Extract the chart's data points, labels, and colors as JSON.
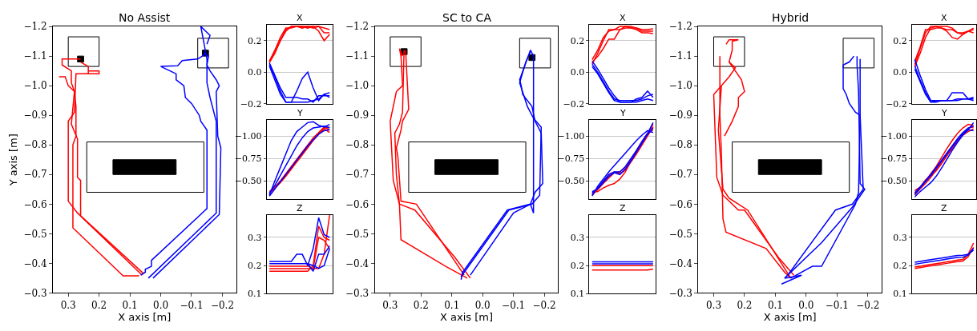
{
  "chart_data": [
    {
      "type": "line",
      "title": "No Assist",
      "xlabel": "X axis [m]",
      "ylabel": "Y axis [m]",
      "xlim": [
        0.35,
        -0.245
      ],
      "ylim": [
        -0.3,
        -1.2
      ],
      "xticks": [
        {
          "value": 0.3,
          "label": "0.3"
        },
        {
          "value": 0.2,
          "label": "0.2"
        },
        {
          "value": 0.1,
          "label": "0.1"
        },
        {
          "value": 0.0,
          "label": "0.0"
        },
        {
          "value": -0.1,
          "label": "−0.1"
        },
        {
          "value": -0.2,
          "label": "−0.2"
        }
      ],
      "yticks": [
        {
          "value": -1.2,
          "label": "−1.2"
        },
        {
          "value": -1.1,
          "label": "−1.1"
        },
        {
          "value": -1.0,
          "label": "−1.0"
        },
        {
          "value": -0.9,
          "label": "−0.9"
        },
        {
          "value": -0.8,
          "label": "−0.8"
        },
        {
          "value": -0.7,
          "label": "−0.7"
        },
        {
          "value": -0.6,
          "label": "−0.6"
        },
        {
          "value": -0.5,
          "label": "−0.5"
        },
        {
          "value": -0.4,
          "label": "−0.4"
        },
        {
          "value": -0.3,
          "label": "−0.3"
        }
      ],
      "series": [
        {
          "color": "#ff0000",
          "x": [
            0.07,
            0.122,
            0.285,
            0.285,
            0.275,
            0.275,
            0.28,
            0.29,
            0.29,
            0.32,
            0.32,
            0.26
          ],
          "values": [
            -0.358,
            -0.358,
            -0.52,
            -0.8,
            -0.83,
            -0.93,
            -0.98,
            -1.01,
            -1.05,
            -1.07,
            -1.09,
            -1.09
          ]
        },
        {
          "color": "#ff0000",
          "x": [
            0.06,
            0.26,
            0.26,
            0.27,
            0.27,
            0.29,
            0.28,
            0.3,
            0.31,
            0.33
          ],
          "values": [
            -0.36,
            -0.56,
            -0.68,
            -0.69,
            -0.82,
            -0.87,
            -0.98,
            -1.0,
            -1.03,
            -1.03
          ]
        },
        {
          "color": "#ff0000",
          "x": [
            0.055,
            0.27,
            0.3,
            0.3,
            0.28,
            0.275,
            0.235,
            0.235,
            0.2,
            0.2,
            0.235,
            0.235,
            0.26
          ],
          "values": [
            -0.365,
            -0.57,
            -0.61,
            -0.88,
            -0.91,
            -1.04,
            -1.04,
            -1.05,
            -1.05,
            -1.04,
            -1.04,
            -1.065,
            -1.08
          ]
        },
        {
          "color": "#0000ff",
          "x": [
            0.065,
            0.05,
            0.05,
            0.03,
            0.03,
            -0.15,
            -0.15,
            -0.13,
            -0.125,
            -0.1,
            -0.08,
            -0.075,
            -0.05,
            -0.05,
            -0.03,
            0.0,
            -0.055,
            -0.07,
            -0.12,
            -0.135,
            -0.145
          ],
          "values": [
            -0.36,
            -0.37,
            -0.38,
            -0.39,
            -0.41,
            -0.585,
            -0.85,
            -0.88,
            -0.9,
            -0.94,
            -0.96,
            -1.0,
            -1.02,
            -1.04,
            -1.05,
            -1.065,
            -1.067,
            -1.085,
            -1.09,
            -1.1,
            -1.11
          ]
        },
        {
          "color": "#0000ff",
          "x": [
            0.04,
            -0.18,
            -0.18,
            -0.16,
            -0.15,
            -0.15,
            -0.155,
            -0.14
          ],
          "values": [
            -0.35,
            -0.57,
            -0.88,
            -0.96,
            -1.01,
            -1.07,
            -1.1,
            -1.11
          ]
        },
        {
          "color": "#0000ff",
          "x": [
            0.025,
            -0.19,
            -0.195,
            -0.185,
            -0.18,
            -0.19,
            -0.18,
            -0.16,
            -0.15,
            -0.15,
            -0.13,
            -0.16,
            -0.15
          ],
          "values": [
            -0.35,
            -0.565,
            -0.79,
            -0.83,
            -0.98,
            -1.0,
            -1.02,
            -1.05,
            -1.07,
            -1.09,
            -1.2,
            -1.17,
            -1.14
          ]
        }
      ]
    },
    {
      "type": "line",
      "title": "X",
      "tick_labels": "y",
      "grid": "y",
      "categories": [
        null,
        null,
        null,
        null,
        null,
        null,
        null,
        null,
        null,
        null,
        null,
        null
      ],
      "ylim": [
        -0.2,
        0.3
      ],
      "yticks": [
        {
          "value": -0.2,
          "label": "−0.2"
        },
        {
          "value": 0.0,
          "label": "0.0"
        },
        {
          "value": 0.2,
          "label": "0.2"
        }
      ],
      "series": [
        {
          "color": "#ff0000",
          "values": [
            0.07,
            0.13,
            0.2,
            0.27,
            0.29,
            0.29,
            0.29,
            0.28,
            0.29,
            0.26,
            0.2,
            0.24
          ]
        },
        {
          "color": "#ff0000",
          "values": [
            0.07,
            0.14,
            0.22,
            0.28,
            0.28,
            0.29,
            0.29,
            0.29,
            0.29,
            0.29,
            0.25,
            0.25
          ]
        },
        {
          "color": "#ff0000",
          "values": [
            0.06,
            0.12,
            0.2,
            0.26,
            0.29,
            0.29,
            0.28,
            0.29,
            0.28,
            0.29,
            0.28,
            0.27
          ]
        },
        {
          "color": "#0000ff",
          "values": [
            0.06,
            -0.02,
            -0.1,
            -0.16,
            -0.16,
            -0.16,
            -0.17,
            -0.17,
            -0.19,
            -0.15,
            -0.15,
            -0.15
          ]
        },
        {
          "color": "#0000ff",
          "values": [
            0.05,
            -0.03,
            -0.12,
            -0.19,
            -0.19,
            -0.12,
            -0.04,
            0.0,
            -0.1,
            -0.18,
            -0.14,
            -0.16
          ]
        },
        {
          "color": "#0000ff",
          "values": [
            0.04,
            -0.05,
            -0.14,
            -0.19,
            -0.19,
            -0.19,
            -0.19,
            -0.19,
            -0.18,
            -0.17,
            -0.14,
            -0.13
          ]
        }
      ]
    },
    {
      "type": "line",
      "title": "Y",
      "tick_labels": "y",
      "grid": "y",
      "categories": [
        null,
        null,
        null,
        null,
        null,
        null,
        null,
        null,
        null,
        null,
        null,
        null
      ],
      "ylim": [
        -0.3,
        -1.18
      ],
      "yticks": [
        {
          "value": -1.0,
          "label": "−1.00"
        },
        {
          "value": -0.75,
          "label": "−0.75"
        },
        {
          "value": -0.5,
          "label": "−0.50"
        }
      ],
      "series": [
        {
          "color": "#ff0000",
          "values": [
            -0.37,
            -0.42,
            -0.48,
            -0.55,
            -0.63,
            -0.71,
            -0.79,
            -0.87,
            -0.95,
            -1.02,
            -1.08,
            -1.04
          ]
        },
        {
          "color": "#ff0000",
          "values": [
            -0.38,
            -0.43,
            -0.5,
            -0.58,
            -0.66,
            -0.74,
            -0.82,
            -0.9,
            -0.98,
            -1.04,
            -1.1,
            -1.07
          ]
        },
        {
          "color": "#ff0000",
          "values": [
            -0.36,
            -0.42,
            -0.49,
            -0.56,
            -0.64,
            -0.72,
            -0.8,
            -0.88,
            -0.96,
            -1.03,
            -1.09,
            -1.1
          ]
        },
        {
          "color": "#0000ff",
          "values": [
            -0.34,
            -0.5,
            -0.65,
            -0.8,
            -0.95,
            -1.05,
            -1.1,
            -1.15,
            -1.16,
            -1.12,
            -1.1,
            -1.13
          ]
        },
        {
          "color": "#0000ff",
          "values": [
            -0.36,
            -0.45,
            -0.56,
            -0.67,
            -0.78,
            -0.89,
            -0.98,
            -1.05,
            -1.09,
            -1.1,
            -1.11,
            -1.09
          ]
        },
        {
          "color": "#0000ff",
          "values": [
            -0.33,
            -0.41,
            -0.49,
            -0.57,
            -0.65,
            -0.73,
            -0.81,
            -0.89,
            -0.96,
            -1.02,
            -1.06,
            -1.07
          ]
        }
      ]
    },
    {
      "type": "line",
      "title": "Z",
      "tick_labels": "y",
      "grid": "y",
      "categories": [
        null,
        null,
        null,
        null,
        null,
        null,
        null,
        null,
        null,
        null,
        null,
        null
      ],
      "ylim": [
        0.1,
        0.38
      ],
      "yticks": [
        {
          "value": 0.1,
          "label": "0.1"
        },
        {
          "value": 0.2,
          "label": "0.2"
        },
        {
          "value": 0.3,
          "label": "0.3"
        }
      ],
      "series": [
        {
          "color": "#ff0000",
          "values": [
            0.18,
            0.18,
            0.18,
            0.18,
            0.18,
            0.18,
            0.18,
            0.18,
            0.2,
            0.34,
            0.3,
            0.29
          ]
        },
        {
          "color": "#ff0000",
          "values": [
            0.198,
            0.198,
            0.198,
            0.198,
            0.198,
            0.198,
            0.198,
            0.198,
            0.19,
            0.19,
            0.24,
            0.38
          ]
        },
        {
          "color": "#ff0000",
          "values": [
            0.189,
            0.189,
            0.189,
            0.189,
            0.189,
            0.189,
            0.189,
            0.189,
            0.189,
            0.3,
            0.29,
            0.26
          ]
        },
        {
          "color": "#0000ff",
          "values": [
            0.215,
            0.215,
            0.215,
            0.215,
            0.215,
            0.24,
            0.24,
            0.2,
            0.26,
            0.37,
            0.31,
            0.3
          ]
        },
        {
          "color": "#0000ff",
          "values": [
            0.207,
            0.207,
            0.207,
            0.207,
            0.207,
            0.207,
            0.207,
            0.207,
            0.18,
            0.24,
            0.24,
            0.27
          ]
        },
        {
          "color": "#0000ff",
          "values": [
            null,
            null,
            null,
            null,
            null,
            null,
            null,
            0.207,
            0.2,
            0.19,
            0.2,
            0.26
          ]
        }
      ]
    },
    {
      "type": "line",
      "title": "SC to CA",
      "xlabel": "X axis [m]",
      "xlim": [
        0.35,
        -0.245
      ],
      "ylim": [
        -0.3,
        -1.2
      ],
      "xticks": [
        {
          "value": 0.3,
          "label": "0.3"
        },
        {
          "value": 0.2,
          "label": "0.2"
        },
        {
          "value": 0.1,
          "label": "0.1"
        },
        {
          "value": 0.0,
          "label": "0.0"
        },
        {
          "value": -0.1,
          "label": "−0.1"
        },
        {
          "value": -0.2,
          "label": "−0.2"
        }
      ],
      "yticks": [
        {
          "value": -1.2,
          "label": "−1.2"
        },
        {
          "value": -1.1,
          "label": "−1.1"
        },
        {
          "value": -1.0,
          "label": "−1.0"
        },
        {
          "value": -0.9,
          "label": "−0.9"
        },
        {
          "value": -0.8,
          "label": "−0.8"
        },
        {
          "value": -0.7,
          "label": "−0.7"
        },
        {
          "value": -0.6,
          "label": "−0.6"
        },
        {
          "value": -0.5,
          "label": "−0.5"
        },
        {
          "value": -0.4,
          "label": "−0.4"
        },
        {
          "value": -0.3,
          "label": "−0.3"
        }
      ],
      "series": [
        {
          "color": "#ff0000",
          "x": [
            0.05,
            0.12,
            0.265,
            0.27,
            0.29,
            0.3,
            0.28,
            0.26,
            0.265,
            0.27,
            0.26
          ],
          "values": [
            -0.35,
            -0.39,
            -0.48,
            -0.6,
            -0.68,
            -0.88,
            -0.98,
            -1.0,
            -1.1,
            -1.125,
            -1.1
          ]
        },
        {
          "color": "#ff0000",
          "x": [
            0.04,
            0.09,
            0.22,
            0.27,
            0.28,
            0.285,
            0.27,
            0.26,
            0.255
          ],
          "values": [
            -0.35,
            -0.42,
            -0.58,
            -0.6,
            -0.7,
            -0.84,
            -0.87,
            -0.91,
            -1.12
          ]
        },
        {
          "color": "#ff0000",
          "x": [
            0.06,
            0.215,
            0.265,
            0.275,
            0.28,
            0.265,
            0.26,
            0.24,
            0.25
          ],
          "values": [
            -0.36,
            -0.6,
            -0.61,
            -0.76,
            -0.79,
            -0.85,
            -0.88,
            -0.92,
            -1.12
          ]
        },
        {
          "color": "#0000ff",
          "x": [
            0.07,
            0.065,
            -0.08,
            -0.155,
            -0.17,
            -0.195,
            -0.19,
            -0.17,
            -0.16,
            -0.13,
            -0.125,
            -0.12,
            -0.155,
            -0.165
          ],
          "values": [
            -0.345,
            -0.37,
            -0.58,
            -0.6,
            -0.64,
            -0.67,
            -0.84,
            -0.88,
            -0.93,
            -0.97,
            -1.0,
            -1.02,
            -1.12,
            -1.1
          ]
        },
        {
          "color": "#0000ff",
          "x": [
            0.07,
            -0.085,
            -0.16,
            -0.185,
            -0.19,
            -0.165,
            -0.145,
            -0.12,
            -0.14,
            -0.155
          ],
          "values": [
            -0.355,
            -0.58,
            -0.6,
            -0.63,
            -0.86,
            -0.89,
            -0.93,
            -1.01,
            -1.08,
            -1.115
          ]
        },
        {
          "color": "#0000ff",
          "x": [
            0.04,
            -0.1,
            -0.155,
            -0.165,
            -0.165
          ],
          "values": [
            -0.36,
            -0.57,
            -0.6,
            -0.57,
            -1.1
          ]
        }
      ]
    },
    {
      "type": "line",
      "title": "X",
      "tick_labels": "y",
      "grid": "y",
      "categories": [
        null,
        null,
        null,
        null,
        null,
        null,
        null,
        null,
        null,
        null,
        null,
        null
      ],
      "ylim": [
        -0.2,
        0.3
      ],
      "yticks": [
        {
          "value": -0.2,
          "label": "−0.2"
        },
        {
          "value": 0.0,
          "label": "0.0"
        },
        {
          "value": 0.2,
          "label": "0.2"
        }
      ],
      "series": [
        {
          "color": "#ff0000",
          "values": [
            0.05,
            0.12,
            0.2,
            0.27,
            0.27,
            0.27,
            0.29,
            0.29,
            0.28,
            0.26,
            0.26,
            0.26
          ]
        },
        {
          "color": "#ff0000",
          "values": [
            0.065,
            0.1,
            0.15,
            0.21,
            0.21,
            0.27,
            0.28,
            0.28,
            0.27,
            0.25,
            0.25,
            0.245
          ]
        },
        {
          "color": "#ff0000",
          "values": [
            0.08,
            0.14,
            0.22,
            0.26,
            0.27,
            0.29,
            0.29,
            0.28,
            0.28,
            0.27,
            0.27,
            0.275
          ]
        },
        {
          "color": "#0000ff",
          "values": [
            0.07,
            0.02,
            -0.04,
            -0.1,
            -0.15,
            -0.19,
            -0.19,
            -0.19,
            -0.17,
            -0.16,
            -0.12,
            -0.16
          ]
        },
        {
          "color": "#0000ff",
          "values": [
            0.05,
            0.0,
            -0.06,
            -0.12,
            -0.17,
            -0.18,
            -0.18,
            -0.18,
            -0.18,
            -0.17,
            -0.15,
            -0.14
          ]
        },
        {
          "color": "#0000ff",
          "values": [
            0.035,
            -0.01,
            -0.07,
            -0.13,
            -0.18,
            -0.19,
            -0.19,
            -0.19,
            -0.19,
            -0.18,
            -0.17,
            -0.18
          ]
        }
      ]
    },
    {
      "type": "line",
      "title": "Y",
      "tick_labels": "y",
      "grid": "y",
      "categories": [
        null,
        null,
        null,
        null,
        null,
        null,
        null,
        null,
        null,
        null,
        null,
        null
      ],
      "ylim": [
        -0.3,
        -1.18
      ],
      "yticks": [
        {
          "value": -1.0,
          "label": "−1.00"
        },
        {
          "value": -0.75,
          "label": "−0.75"
        },
        {
          "value": -0.5,
          "label": "−0.50"
        }
      ],
      "series": [
        {
          "color": "#ff0000",
          "values": [
            -0.35,
            -0.42,
            -0.49,
            -0.57,
            -0.6,
            -0.58,
            -0.62,
            -0.71,
            -0.8,
            -0.9,
            -1.0,
            -1.1
          ]
        },
        {
          "color": "#ff0000",
          "values": [
            -0.37,
            -0.38,
            -0.42,
            -0.45,
            -0.47,
            -0.52,
            -0.6,
            -0.72,
            -0.83,
            -0.93,
            -1.02,
            -1.13
          ]
        },
        {
          "color": "#ff0000",
          "values": [
            -0.34,
            -0.4,
            -0.47,
            -0.53,
            -0.59,
            -0.6,
            -0.65,
            -0.74,
            -0.84,
            -0.94,
            -1.03,
            -1.07
          ]
        },
        {
          "color": "#0000ff",
          "values": [
            -0.36,
            -0.42,
            -0.5,
            -0.57,
            -0.6,
            -0.6,
            -0.66,
            -0.75,
            -0.84,
            -0.94,
            -1.03,
            -1.15
          ]
        },
        {
          "color": "#0000ff",
          "values": [
            -0.33,
            -0.44,
            -0.52,
            -0.6,
            -0.67,
            -0.74,
            -0.81,
            -0.88,
            -0.95,
            -1.01,
            -1.06,
            -1.04
          ]
        },
        {
          "color": "#0000ff",
          "values": [
            -0.38,
            -0.41,
            -0.48,
            -0.55,
            -0.59,
            -0.57,
            -0.63,
            -0.72,
            -0.82,
            -0.92,
            -1.02,
            -1.09
          ]
        }
      ]
    },
    {
      "type": "line",
      "title": "Z",
      "tick_labels": "y",
      "grid": "y",
      "categories": [
        null,
        null,
        null,
        null,
        null,
        null,
        null,
        null,
        null,
        null,
        null,
        null
      ],
      "ylim": [
        0.1,
        0.38
      ],
      "yticks": [
        {
          "value": 0.1,
          "label": "0.1"
        },
        {
          "value": 0.2,
          "label": "0.2"
        },
        {
          "value": 0.3,
          "label": "0.3"
        }
      ],
      "series": [
        {
          "color": "#ff0000",
          "values": [
            0.2,
            0.2,
            0.2,
            0.2,
            0.2,
            0.2,
            0.2,
            0.2,
            0.2,
            0.2,
            0.2,
            0.2
          ]
        },
        {
          "color": "#ff0000",
          "values": [
            0.184,
            0.184,
            0.184,
            0.184,
            0.184,
            0.184,
            0.184,
            0.184,
            0.184,
            0.184,
            0.184,
            0.188
          ]
        },
        {
          "color": "#0000ff",
          "values": [
            0.213,
            0.213,
            0.213,
            0.213,
            0.213,
            0.213,
            0.213,
            0.213,
            0.213,
            0.213,
            0.213,
            0.213
          ]
        },
        {
          "color": "#0000ff",
          "values": [
            0.206,
            0.206,
            0.206,
            0.206,
            0.206,
            0.206,
            0.206,
            0.206,
            0.206,
            0.206,
            0.206,
            0.206
          ]
        }
      ]
    },
    {
      "type": "line",
      "title": "Hybrid",
      "xlabel": "X axis [m]",
      "xlim": [
        0.35,
        -0.245
      ],
      "ylim": [
        -0.3,
        -1.2
      ],
      "xticks": [
        {
          "value": 0.3,
          "label": "0.3"
        },
        {
          "value": 0.2,
          "label": "0.2"
        },
        {
          "value": 0.1,
          "label": "0.1"
        },
        {
          "value": 0.0,
          "label": "0.0"
        },
        {
          "value": -0.1,
          "label": "−0.1"
        },
        {
          "value": -0.2,
          "label": "−0.2"
        }
      ],
      "yticks": [
        {
          "value": -1.2,
          "label": "−1.2"
        },
        {
          "value": -1.1,
          "label": "−1.1"
        },
        {
          "value": -1.0,
          "label": "−1.0"
        },
        {
          "value": -0.9,
          "label": "−0.9"
        },
        {
          "value": -0.8,
          "label": "−0.8"
        },
        {
          "value": -0.7,
          "label": "−0.7"
        },
        {
          "value": -0.6,
          "label": "−0.6"
        },
        {
          "value": -0.5,
          "label": "−0.5"
        },
        {
          "value": -0.4,
          "label": "−0.4"
        },
        {
          "value": -0.3,
          "label": "−0.3"
        }
      ],
      "series": [
        {
          "color": "#ff0000",
          "x": [
            0.05,
            0.07,
            0.13,
            0.26,
            0.27,
            0.275,
            0.28,
            0.28
          ],
          "values": [
            -0.35,
            -0.37,
            -0.45,
            -0.505,
            -0.55,
            -0.77,
            -0.9,
            -1.1
          ]
        },
        {
          "color": "#ff0000",
          "x": [
            0.04,
            0.09,
            0.2,
            0.22,
            0.27,
            0.29,
            0.3,
            0.25,
            0.23,
            0.25
          ],
          "values": [
            -0.36,
            -0.42,
            -0.58,
            -0.58,
            -0.63,
            -0.69,
            -0.97,
            -1.03,
            -1.06,
            -1.08
          ]
        },
        {
          "color": "#ff0000",
          "x": [
            0.05,
            0.19,
            0.25,
            0.27,
            0.285,
            0.275
          ],
          "values": [
            -0.35,
            -0.58,
            -0.62,
            -0.65,
            -0.85,
            -1.0
          ]
        },
        {
          "color": "#ff0000",
          "x": [
            0.265,
            0.24,
            0.22,
            0.22,
            0.2,
            0.21,
            0.23,
            0.25,
            0.24,
            0.24,
            0.22,
            0.25,
            0.26
          ],
          "values": [
            -0.83,
            -0.88,
            -0.93,
            -0.96,
            -0.98,
            -1.02,
            -1.05,
            -1.08,
            -1.12,
            -1.15,
            -1.155,
            -1.155,
            -1.14
          ]
        },
        {
          "color": "#0000ff",
          "x": [
            0.08,
            0.015,
            0.07,
            -0.05,
            -0.15,
            -0.19,
            -0.175,
            -0.17,
            -0.165,
            -0.165
          ],
          "values": [
            -0.33,
            -0.36,
            -0.35,
            -0.47,
            -0.59,
            -0.65,
            -0.67,
            -0.98,
            -1.07,
            -1.1
          ]
        },
        {
          "color": "#0000ff",
          "x": [
            0.06,
            -0.095,
            -0.15,
            -0.185,
            -0.175,
            -0.175
          ],
          "values": [
            -0.36,
            -0.58,
            -0.6,
            -0.65,
            -0.9,
            -1.09
          ]
        },
        {
          "color": "#0000ff",
          "x": [
            0.05,
            -0.02,
            -0.05,
            -0.16,
            -0.17,
            -0.175,
            -0.16,
            -0.14,
            -0.13,
            -0.12,
            -0.12,
            -0.14,
            -0.155
          ],
          "values": [
            -0.35,
            -0.39,
            -0.39,
            -0.6,
            -0.64,
            -0.9,
            -0.91,
            -0.94,
            -0.97,
            -0.99,
            -1.07,
            -1.08,
            -1.1
          ]
        }
      ]
    },
    {
      "type": "line",
      "title": "X",
      "tick_labels": "y",
      "grid": "y",
      "categories": [
        null,
        null,
        null,
        null,
        null,
        null,
        null,
        null,
        null,
        null,
        null,
        null
      ],
      "ylim": [
        -0.2,
        0.3
      ],
      "yticks": [
        {
          "value": -0.2,
          "label": "−0.2"
        },
        {
          "value": 0.0,
          "label": "0.0"
        },
        {
          "value": 0.2,
          "label": "0.2"
        }
      ],
      "series": [
        {
          "color": "#ff0000",
          "values": [
            0.05,
            0.15,
            0.25,
            0.29,
            0.29,
            0.28,
            0.26,
            0.22,
            0.21,
            0.24,
            0.26,
            0.27
          ]
        },
        {
          "color": "#ff0000",
          "values": [
            0.07,
            0.16,
            0.27,
            0.27,
            0.28,
            0.28,
            0.27,
            0.27,
            0.25,
            0.25,
            0.26,
            0.25
          ]
        },
        {
          "color": "#ff0000",
          "values": [
            0.035,
            0.12,
            0.22,
            0.28,
            0.29,
            0.29,
            0.29,
            0.28,
            0.25,
            0.24,
            0.26,
            0.28
          ]
        },
        {
          "color": "#0000ff",
          "values": [
            0.08,
            -0.02,
            -0.11,
            -0.18,
            -0.18,
            -0.18,
            -0.18,
            -0.18,
            -0.17,
            -0.17,
            -0.17,
            -0.16
          ]
        },
        {
          "color": "#0000ff",
          "values": [
            0.04,
            -0.05,
            -0.13,
            -0.19,
            -0.18,
            -0.18,
            -0.18,
            -0.13,
            -0.13,
            -0.13,
            -0.17,
            -0.18
          ]
        },
        {
          "color": "#0000ff",
          "values": [
            0.02,
            -0.06,
            -0.14,
            -0.19,
            -0.19,
            -0.18,
            -0.18,
            -0.18,
            -0.18,
            -0.17,
            -0.17,
            -0.17
          ]
        }
      ]
    },
    {
      "type": "line",
      "title": "Y",
      "tick_labels": "y",
      "grid": "y",
      "categories": [
        null,
        null,
        null,
        null,
        null,
        null,
        null,
        null,
        null,
        null,
        null,
        null
      ],
      "ylim": [
        -0.3,
        -1.18
      ],
      "yticks": [
        {
          "value": -1.0,
          "label": "−1.00"
        },
        {
          "value": -0.75,
          "label": "−0.75"
        },
        {
          "value": -0.5,
          "label": "−0.50"
        }
      ],
      "series": [
        {
          "color": "#ff0000",
          "values": [
            -0.36,
            -0.42,
            -0.5,
            -0.58,
            -0.66,
            -0.76,
            -0.86,
            -0.95,
            -1.03,
            -1.09,
            -1.13,
            -1.12
          ]
        },
        {
          "color": "#ff0000",
          "values": [
            -0.34,
            -0.41,
            -0.47,
            -0.54,
            -0.62,
            -0.7,
            -0.78,
            -0.86,
            -0.94,
            -1.01,
            -1.05,
            -1.08
          ]
        },
        {
          "color": "#ff0000",
          "values": [
            -0.39,
            -0.43,
            -0.51,
            -0.56,
            -0.61,
            -0.69,
            -0.78,
            -0.87,
            -0.96,
            -1.03,
            -1.09,
            -1.1
          ]
        },
        {
          "color": "#0000ff",
          "values": [
            -0.32,
            -0.38,
            -0.43,
            -0.48,
            -0.55,
            -0.64,
            -0.74,
            -0.84,
            -0.93,
            -1.01,
            -1.07,
            -1.15
          ]
        },
        {
          "color": "#0000ff",
          "values": [
            -0.35,
            -0.42,
            -0.49,
            -0.56,
            -0.64,
            -0.72,
            -0.8,
            -0.88,
            -0.96,
            -1.03,
            -1.07,
            -1.06
          ]
        },
        {
          "color": "#0000ff",
          "values": [
            -0.37,
            -0.43,
            -0.5,
            -0.57,
            -0.65,
            -0.73,
            -0.81,
            -0.89,
            -0.97,
            -1.04,
            -1.09,
            -1.11
          ]
        }
      ]
    },
    {
      "type": "line",
      "title": "Z",
      "tick_labels": "y",
      "grid": "y",
      "categories": [
        null,
        null,
        null,
        null,
        null,
        null,
        null,
        null,
        null,
        null,
        null,
        null
      ],
      "ylim": [
        0.1,
        0.38
      ],
      "yticks": [
        {
          "value": 0.1,
          "label": "0.1"
        },
        {
          "value": 0.2,
          "label": "0.2"
        },
        {
          "value": 0.3,
          "label": "0.3"
        }
      ],
      "series": [
        {
          "color": "#ff0000",
          "values": [
            0.195,
            0.198,
            0.201,
            0.204,
            0.207,
            0.21,
            0.213,
            0.216,
            0.22,
            0.222,
            0.24,
            0.28
          ]
        },
        {
          "color": "#ff0000",
          "values": [
            0.19,
            0.193,
            0.196,
            0.199,
            0.202,
            0.205,
            0.208,
            0.211,
            0.214,
            0.216,
            0.232,
            0.265
          ]
        },
        {
          "color": "#0000ff",
          "values": [
            0.212,
            0.215,
            0.218,
            0.221,
            0.224,
            0.227,
            0.23,
            0.233,
            0.236,
            0.237,
            0.24,
            0.255
          ]
        },
        {
          "color": "#0000ff",
          "values": [
            0.205,
            0.208,
            0.211,
            0.214,
            0.217,
            0.22,
            0.223,
            0.226,
            0.229,
            0.23,
            0.238,
            0.262
          ]
        }
      ]
    }
  ]
}
